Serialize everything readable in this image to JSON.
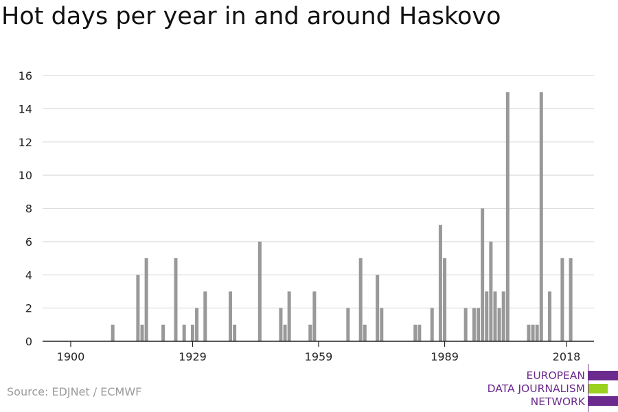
{
  "title": "Hot days per year in and around Haskovo",
  "source": "Source: EDJNet / ECMWF",
  "logo": {
    "lines": [
      "EUROPEAN",
      "DATA JOURNALISM",
      "NETWORK"
    ],
    "colors": {
      "purple": "#6b2a8e",
      "green": "#9bd11f"
    }
  },
  "colors": {
    "bar": "#999999",
    "grid": "#dddddd",
    "axis": "#222222",
    "text": "#222222"
  },
  "chart_data": {
    "type": "bar",
    "title": "Hot days per year in and around Haskovo",
    "xlabel": "",
    "ylabel": "",
    "xlim": [
      1894,
      2025
    ],
    "ylim": [
      0,
      16
    ],
    "yticks": [
      0,
      2,
      4,
      6,
      8,
      10,
      12,
      14,
      16
    ],
    "xticks": [
      1900,
      1929,
      1959,
      1989,
      2018
    ],
    "grid": true,
    "x": [
      1910,
      1916,
      1917,
      1918,
      1922,
      1925,
      1927,
      1929,
      1930,
      1932,
      1938,
      1939,
      1945,
      1950,
      1951,
      1952,
      1957,
      1958,
      1966,
      1969,
      1970,
      1973,
      1974,
      1982,
      1983,
      1986,
      1988,
      1989,
      1994,
      1996,
      1997,
      1998,
      1999,
      2000,
      2001,
      2002,
      2003,
      2004,
      2009,
      2010,
      2011,
      2012,
      2014,
      2017,
      2019
    ],
    "values": [
      1,
      4,
      1,
      5,
      1,
      5,
      1,
      1,
      2,
      3,
      3,
      1,
      6,
      2,
      1,
      3,
      1,
      3,
      2,
      5,
      1,
      4,
      2,
      1,
      1,
      2,
      7,
      5,
      2,
      2,
      2,
      8,
      3,
      6,
      3,
      2,
      3,
      15,
      1,
      1,
      1,
      15,
      3,
      5,
      5
    ]
  }
}
